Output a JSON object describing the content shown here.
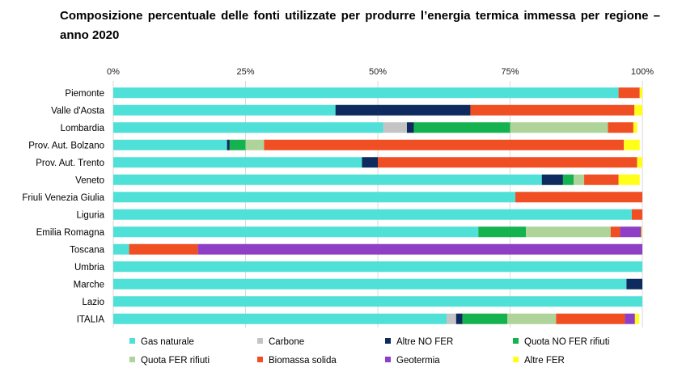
{
  "chart_data": {
    "type": "bar",
    "orientation": "horizontal",
    "stacked": true,
    "title": "Composizione percentuale delle fonti utilizzate per produrre l’energia termica immessa per regione – anno 2020",
    "xlim": [
      0,
      100
    ],
    "x_ticks": [
      "0%",
      "25%",
      "50%",
      "75%",
      "100%"
    ],
    "grid": "vertical",
    "legend_position": "bottom",
    "categories": [
      "Piemonte",
      "Valle d'Aosta",
      "Lombardia",
      "Prov. Aut. Bolzano",
      "Prov. Aut. Trento",
      "Veneto",
      "Friuli Venezia Giulia",
      "Liguria",
      "Emilia Romagna",
      "Toscana",
      "Umbria",
      "Marche",
      "Lazio",
      "ITALIA"
    ],
    "series": [
      {
        "name": "Gas naturale",
        "color": "#4fe0d8",
        "values": [
          95.5,
          42,
          51,
          21.5,
          47,
          81,
          76,
          98,
          69,
          3,
          100,
          97,
          100,
          63
        ]
      },
      {
        "name": "Carbone",
        "color": "#c4c4c4",
        "values": [
          0,
          0,
          4.5,
          0,
          0,
          0,
          0,
          0,
          0,
          0,
          0,
          0,
          0,
          1.8
        ]
      },
      {
        "name": "Altre NO FER",
        "color": "#0e2a5e",
        "values": [
          0,
          25.5,
          1.3,
          0.5,
          3,
          4,
          0,
          0,
          0,
          0,
          0,
          3,
          0,
          1.2
        ]
      },
      {
        "name": "Quota NO FER rifiuti",
        "color": "#14b34f",
        "values": [
          0,
          0,
          18.2,
          3,
          0,
          2,
          0,
          0,
          9,
          0,
          0,
          0,
          0,
          8.5
        ]
      },
      {
        "name": "Quota FER rifiuti",
        "color": "#aed49a",
        "values": [
          0,
          0,
          18.5,
          3.5,
          0,
          2,
          0,
          0,
          16,
          0,
          0,
          0,
          0,
          9.2
        ]
      },
      {
        "name": "Biomassa solida",
        "color": "#f04e23",
        "values": [
          4,
          31,
          4.8,
          68,
          49,
          6.5,
          24,
          2,
          1.8,
          13,
          0,
          0,
          0,
          13
        ]
      },
      {
        "name": "Geotermia",
        "color": "#8e3fc5",
        "values": [
          0,
          0,
          0,
          0,
          0,
          0,
          0,
          0,
          4,
          84,
          0,
          0,
          0,
          1.9
        ]
      },
      {
        "name": "Altre FER",
        "color": "#ffff1a",
        "values": [
          0.5,
          1.5,
          0.7,
          3,
          1,
          4,
          0,
          0,
          0.2,
          0,
          0,
          0,
          0,
          0.8
        ]
      }
    ]
  }
}
